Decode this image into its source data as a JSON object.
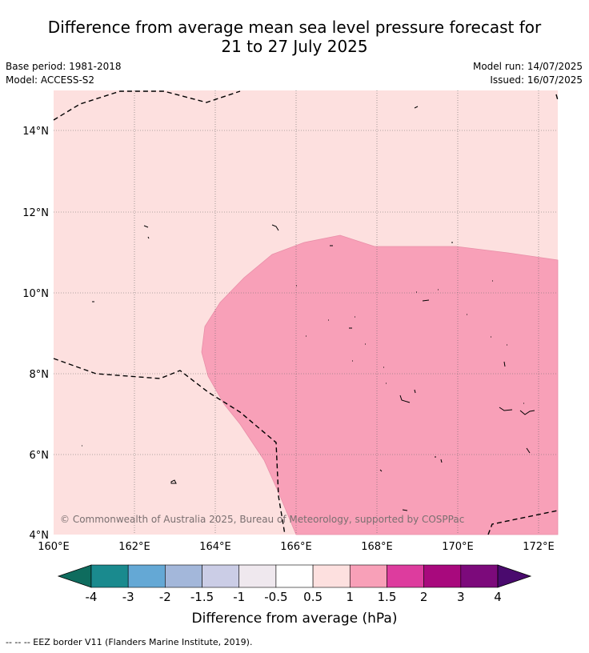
{
  "title_line1": "Difference from average mean sea level pressure forecast for",
  "title_line2": "21 to 27 July 2025",
  "base_period": "Base period: 1981-2018",
  "model": "Model: ACCESS-S2",
  "model_run": "Model run: 14/07/2025",
  "issued": "Issued: 16/07/2025",
  "copyright": "© Commonwealth of Australia 2025, Bureau of Meteorology, supported by COSPPac",
  "lat_labels": [
    "14°N",
    "12°N",
    "10°N",
    "8°N",
    "6°N",
    "4°N"
  ],
  "lon_labels": [
    "160°E",
    "162°E",
    "164°E",
    "166°E",
    "168°E",
    "170°E",
    "172°E"
  ],
  "colorbar": {
    "label": "Difference from average (hPa)",
    "ticks": [
      "-4",
      "-3",
      "-2",
      "-1.5",
      "-1",
      "-0.5",
      "0.5",
      "1",
      "1.5",
      "2",
      "3",
      "4"
    ],
    "colors": [
      "#1a8a8e",
      "#64a8d5",
      "#a3b7da",
      "#cbcde6",
      "#efe8ee",
      "#ffffff",
      "#fde0df",
      "#f8a0b8",
      "#dd3c9e",
      "#a8097d",
      "#7c0a7b"
    ],
    "low_extend_color": "#0e6c5e",
    "high_extend_color": "#4a0a6e"
  },
  "field": {
    "background_category": "0.5 to 1",
    "background_color": "#fde0df",
    "anomaly_category": "1 to 1.5",
    "anomaly_color": "#f8a0b8"
  },
  "footnote": "--  --  -- EEZ border V11 (Flanders Marine Institute, 2019)."
}
